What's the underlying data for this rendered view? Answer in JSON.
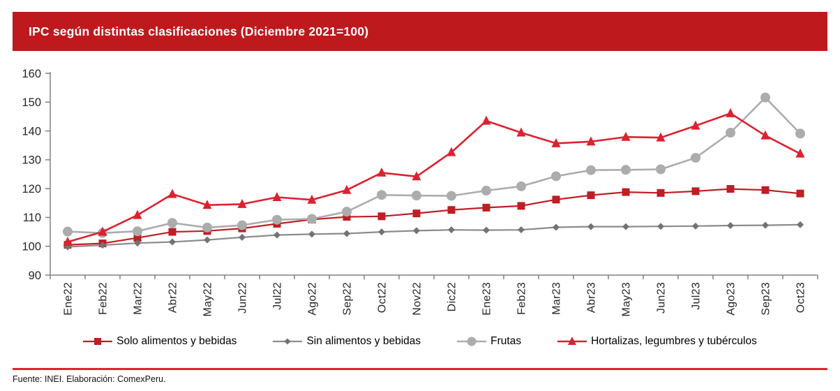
{
  "header": {
    "title": "IPC según distintas clasificaciones (Diciembre 2021=100)",
    "bg_color": "#BE1A1E",
    "text_color": "#FFFFFF"
  },
  "chart_data": {
    "type": "line",
    "title": "IPC según distintas clasificaciones (Diciembre 2021=100)",
    "xlabel": "",
    "ylabel": "",
    "ylim": [
      90,
      160
    ],
    "yticks": [
      90,
      100,
      110,
      120,
      130,
      140,
      150,
      160
    ],
    "grid": false,
    "legend_position": "bottom",
    "axis_color": "#808080",
    "tick_label_color": "#262626",
    "categories": [
      "Ene22",
      "Feb22",
      "Mar22",
      "Abr22",
      "May22",
      "Jun22",
      "Jul22",
      "Ago22",
      "Sep22",
      "Oct22",
      "Nov22",
      "Dic22",
      "Ene23",
      "Feb23",
      "Mar23",
      "Abr23",
      "May23",
      "Jun23",
      "Jul23",
      "Ago23",
      "Sep23",
      "Oct23"
    ],
    "series": [
      {
        "name": "Solo alimentos y bebidas",
        "color": "#BE1E24",
        "marker": "square",
        "line_width": 2.2,
        "marker_size": 11,
        "values": [
          100.5,
          101.0,
          102.9,
          105.0,
          105.3,
          106.2,
          107.8,
          109.3,
          110.2,
          110.4,
          111.4,
          112.6,
          113.4,
          114.0,
          116.2,
          117.7,
          118.8,
          118.5,
          119.1,
          119.9,
          119.5,
          118.3
        ]
      },
      {
        "name": "Sin alimentos y bebidas",
        "color": "#8C8C8C",
        "marker_color": "#737373",
        "marker": "diamond",
        "line_width": 2.2,
        "marker_size": 10,
        "values": [
          99.8,
          100.4,
          101.1,
          101.5,
          102.2,
          103.1,
          103.9,
          104.2,
          104.4,
          105.0,
          105.4,
          105.7,
          105.6,
          105.7,
          106.6,
          106.8,
          106.8,
          106.9,
          107.0,
          107.2,
          107.3,
          107.5
        ]
      },
      {
        "name": "Frutas",
        "color": "#ACACAC",
        "marker": "circle",
        "line_width": 2.6,
        "marker_size": 14,
        "values": [
          105.1,
          104.6,
          105.2,
          108.1,
          106.5,
          107.3,
          109.2,
          109.5,
          112.0,
          117.8,
          117.6,
          117.5,
          119.3,
          120.8,
          124.3,
          126.4,
          126.5,
          126.7,
          130.7,
          139.4,
          151.6,
          139.1
        ]
      },
      {
        "name": "Hortalizas, legumbres y tubérculos",
        "color": "#DD2130",
        "marker": "triangle",
        "line_width": 2.6,
        "marker_size": 13,
        "values": [
          101.5,
          105.0,
          110.8,
          118.1,
          114.3,
          114.6,
          117.0,
          116.1,
          119.5,
          125.5,
          124.2,
          132.6,
          143.5,
          139.4,
          135.7,
          136.3,
          137.9,
          137.7,
          141.8,
          146.1,
          138.4,
          132.1
        ]
      }
    ]
  },
  "footer": {
    "source": "Fuente: INEI. Elaboración: ComexPeru.",
    "rule_color": "#DF2430"
  }
}
